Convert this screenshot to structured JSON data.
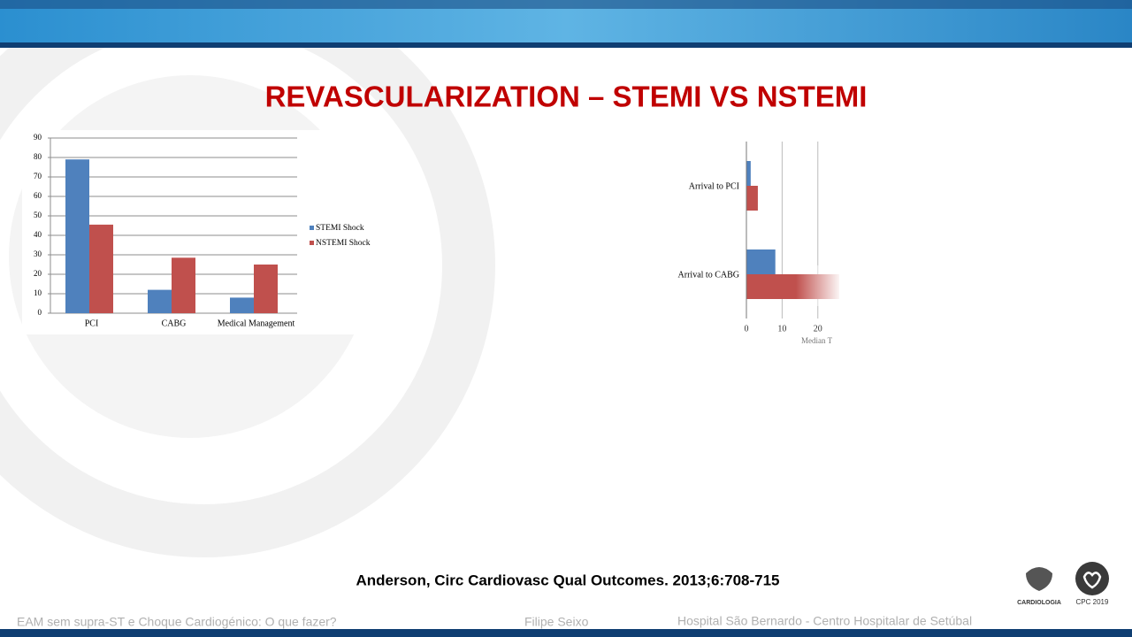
{
  "title": "REVASCULARIZATION – STEMI VS NSTEMI",
  "citation": "Anderson, Circ Cardiovasc Qual Outcomes. 2013;6:708-715",
  "footer": {
    "talk": "EAM sem supra-ST e Choque Cardiogénico: O que fazer?",
    "speaker": "Filipe Seixo",
    "institution": "Hospital São Bernardo  - Centro Hospitalar de Setúbal"
  },
  "logos": {
    "society": "CARDIOLOGIA",
    "congress": "CPC 2019"
  },
  "chart_data": [
    {
      "type": "bar",
      "categories": [
        "PCI",
        "CABG",
        "Medical Management"
      ],
      "series": [
        {
          "name": "STEMI Shock",
          "color": "#4f81bd",
          "values": [
            79,
            12,
            8
          ]
        },
        {
          "name": "NSTEMI Shock",
          "color": "#c0504d",
          "values": [
            45.5,
            28.5,
            25
          ]
        }
      ],
      "ylim": [
        0,
        90
      ],
      "yticks": [
        0,
        10,
        20,
        30,
        40,
        50,
        60,
        70,
        80,
        90
      ],
      "grid": true,
      "legend": "right"
    },
    {
      "type": "barh",
      "categories": [
        "Arrival to PCI",
        "Arrival to CABG"
      ],
      "series": [
        {
          "color": "#4f81bd",
          "values": [
            1.2,
            8.1
          ]
        },
        {
          "color": "#c0504d",
          "values": [
            3.2,
            26
          ]
        }
      ],
      "xlim": [
        0,
        26
      ],
      "xticks": [
        0,
        10,
        20
      ],
      "x_label": "Median T",
      "grid": true
    }
  ]
}
